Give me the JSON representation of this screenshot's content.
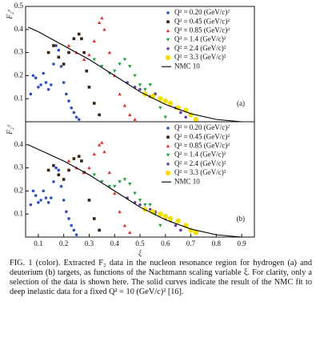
{
  "chart_data": [
    {
      "type": "scatter",
      "ylabel": "F₂ᵖ",
      "panel_label": "(a)",
      "legend": "upper right",
      "xlim": [
        0.05,
        0.95
      ],
      "ylim": [
        0,
        0.5
      ],
      "yticks": [
        0.1,
        0.2,
        0.3,
        0.4,
        0.5
      ],
      "series": [
        {
          "name": "Q² = 0.20 (GeV/c)²",
          "color": "#2f4fc0",
          "marker": "circle",
          "x": [
            0.07,
            0.08,
            0.09,
            0.1,
            0.11,
            0.12,
            0.13,
            0.14,
            0.15,
            0.16,
            0.17,
            0.18,
            0.19,
            0.2,
            0.21,
            0.22,
            0.23,
            0.24,
            0.25,
            0.26
          ],
          "values": [
            0.12,
            0.2,
            0.19,
            0.15,
            0.16,
            0.21,
            0.17,
            0.14,
            0.16,
            0.25,
            0.33,
            0.31,
            0.24,
            0.17,
            0.12,
            0.09,
            0.06,
            0.04,
            0.02,
            0.01
          ]
        },
        {
          "name": "Q² = 0.45 (GeV/c)²",
          "color": "#3a2410",
          "marker": "square",
          "x": [
            0.14,
            0.16,
            0.18,
            0.2,
            0.22,
            0.24,
            0.26,
            0.27,
            0.28,
            0.29,
            0.3,
            0.32,
            0.34
          ],
          "values": [
            0.3,
            0.33,
            0.28,
            0.25,
            0.3,
            0.36,
            0.38,
            0.36,
            0.3,
            0.22,
            0.15,
            0.08,
            0.03
          ]
        },
        {
          "name": "Q² = 0.85 (GeV/c)²",
          "color": "#e03030",
          "marker": "triangle",
          "x": [
            0.22,
            0.25,
            0.28,
            0.3,
            0.32,
            0.34,
            0.35,
            0.36,
            0.38,
            0.4,
            0.42,
            0.44,
            0.46,
            0.48
          ],
          "values": [
            0.33,
            0.3,
            0.27,
            0.29,
            0.35,
            0.43,
            0.45,
            0.4,
            0.3,
            0.2,
            0.12,
            0.07,
            0.03,
            0.01
          ]
        },
        {
          "name": "Q² = 1.4 (GeV/c)²",
          "color": "#20a040",
          "marker": "triangle-down",
          "x": [
            0.32,
            0.35,
            0.38,
            0.4,
            0.42,
            0.44,
            0.46,
            0.48,
            0.5,
            0.52,
            0.54,
            0.56,
            0.58,
            0.6
          ],
          "values": [
            0.27,
            0.24,
            0.21,
            0.22,
            0.25,
            0.27,
            0.24,
            0.2,
            0.16,
            0.14,
            0.16,
            0.12,
            0.06,
            0.02
          ]
        },
        {
          "name": "Q² = 2.4 (GeV/c)²",
          "color": "#6a40a0",
          "marker": "circle",
          "x": [
            0.45,
            0.48,
            0.5,
            0.52,
            0.54,
            0.56,
            0.58,
            0.6,
            0.62,
            0.64,
            0.66,
            0.68
          ],
          "values": [
            0.17,
            0.15,
            0.14,
            0.12,
            0.11,
            0.12,
            0.1,
            0.09,
            0.08,
            0.06,
            0.04,
            0.02
          ]
        },
        {
          "name": "Q² = 3.3 (GeV/c)²",
          "color": "#f2e000",
          "marker": "big-circle",
          "x": [
            0.52,
            0.55,
            0.58,
            0.6,
            0.62,
            0.65,
            0.68,
            0.7,
            0.72
          ],
          "values": [
            0.12,
            0.11,
            0.1,
            0.09,
            0.08,
            0.06,
            0.05,
            0.03,
            0.01
          ]
        }
      ],
      "curve": {
        "name": "NMC 10",
        "color": "#000000",
        "x": [
          0.06,
          0.1,
          0.2,
          0.3,
          0.4,
          0.5,
          0.6,
          0.7,
          0.8,
          0.9
        ],
        "values": [
          0.41,
          0.39,
          0.33,
          0.27,
          0.2,
          0.13,
          0.075,
          0.035,
          0.01,
          0
        ]
      }
    },
    {
      "type": "scatter",
      "ylabel": "F₂ᵈ",
      "panel_label": "(b)",
      "legend": "upper right",
      "xlabel": "ξ",
      "xlim": [
        0.05,
        0.95
      ],
      "ylim": [
        0,
        0.5
      ],
      "yticks": [
        0.1,
        0.2,
        0.3,
        0.4
      ],
      "xticks": [
        0.1,
        0.2,
        0.3,
        0.4,
        0.5,
        0.6,
        0.7,
        0.8,
        0.9
      ],
      "series": [
        {
          "name": "Q² = 0.20 (GeV/c)²",
          "color": "#2f4fc0",
          "marker": "circle",
          "x": [
            0.07,
            0.08,
            0.09,
            0.1,
            0.11,
            0.12,
            0.13,
            0.14,
            0.15,
            0.16,
            0.17,
            0.18,
            0.19,
            0.2,
            0.21,
            0.22,
            0.23,
            0.24,
            0.25
          ],
          "values": [
            0.14,
            0.2,
            0.18,
            0.15,
            0.16,
            0.2,
            0.17,
            0.15,
            0.17,
            0.24,
            0.3,
            0.29,
            0.22,
            0.16,
            0.11,
            0.08,
            0.05,
            0.03,
            0.01
          ]
        },
        {
          "name": "Q² = 0.45 (GeV/c)²",
          "color": "#3a2410",
          "marker": "square",
          "x": [
            0.14,
            0.16,
            0.18,
            0.2,
            0.22,
            0.24,
            0.26,
            0.27,
            0.28,
            0.3,
            0.32,
            0.34
          ],
          "values": [
            0.29,
            0.31,
            0.27,
            0.25,
            0.29,
            0.34,
            0.35,
            0.33,
            0.28,
            0.16,
            0.08,
            0.03
          ]
        },
        {
          "name": "Q² = 0.85 (GeV/c)²",
          "color": "#e03030",
          "marker": "triangle",
          "x": [
            0.22,
            0.25,
            0.28,
            0.3,
            0.32,
            0.34,
            0.35,
            0.36,
            0.38,
            0.4,
            0.42,
            0.44,
            0.46
          ],
          "values": [
            0.33,
            0.3,
            0.28,
            0.3,
            0.36,
            0.4,
            0.41,
            0.37,
            0.28,
            0.19,
            0.11,
            0.05,
            0.02
          ]
        },
        {
          "name": "Q² = 1.4 (GeV/c)²",
          "color": "#20a040",
          "marker": "triangle-down",
          "x": [
            0.32,
            0.35,
            0.38,
            0.4,
            0.42,
            0.44,
            0.46,
            0.48,
            0.5,
            0.52,
            0.54,
            0.56,
            0.58
          ],
          "values": [
            0.27,
            0.24,
            0.22,
            0.22,
            0.24,
            0.25,
            0.23,
            0.19,
            0.16,
            0.14,
            0.14,
            0.1,
            0.05
          ]
        },
        {
          "name": "Q² = 2.4 (GeV/c)²",
          "color": "#6a40a0",
          "marker": "circle",
          "x": [
            0.45,
            0.48,
            0.5,
            0.52,
            0.54,
            0.56,
            0.58,
            0.6,
            0.62,
            0.64,
            0.66
          ],
          "values": [
            0.17,
            0.15,
            0.14,
            0.12,
            0.12,
            0.11,
            0.1,
            0.08,
            0.07,
            0.05,
            0.03
          ]
        },
        {
          "name": "Q² = 3.3 (GeV/c)²",
          "color": "#f2e000",
          "marker": "big-circle",
          "x": [
            0.52,
            0.55,
            0.58,
            0.6,
            0.62,
            0.65,
            0.68,
            0.7,
            0.72
          ],
          "values": [
            0.12,
            0.11,
            0.1,
            0.09,
            0.08,
            0.07,
            0.05,
            0.03,
            0.02
          ]
        }
      ],
      "curve": {
        "name": "NMC 10",
        "color": "#000000",
        "x": [
          0.06,
          0.1,
          0.2,
          0.3,
          0.4,
          0.5,
          0.6,
          0.7,
          0.8,
          0.9
        ],
        "values": [
          0.4,
          0.38,
          0.33,
          0.27,
          0.2,
          0.13,
          0.075,
          0.035,
          0.01,
          0
        ]
      }
    }
  ],
  "caption": "FIG. 1 (color).  Extracted F₂ data in the nucleon resonance region for hydrogen (a) and deuterium (b) targets, as functions of the Nachtmann scaling variable ξ. For clarity, only a selection of the data is shown here. The solid curves indicate the result of the NMC fit to deep inelastic data for a fixed Q² = 10 (GeV/c)² [16]."
}
